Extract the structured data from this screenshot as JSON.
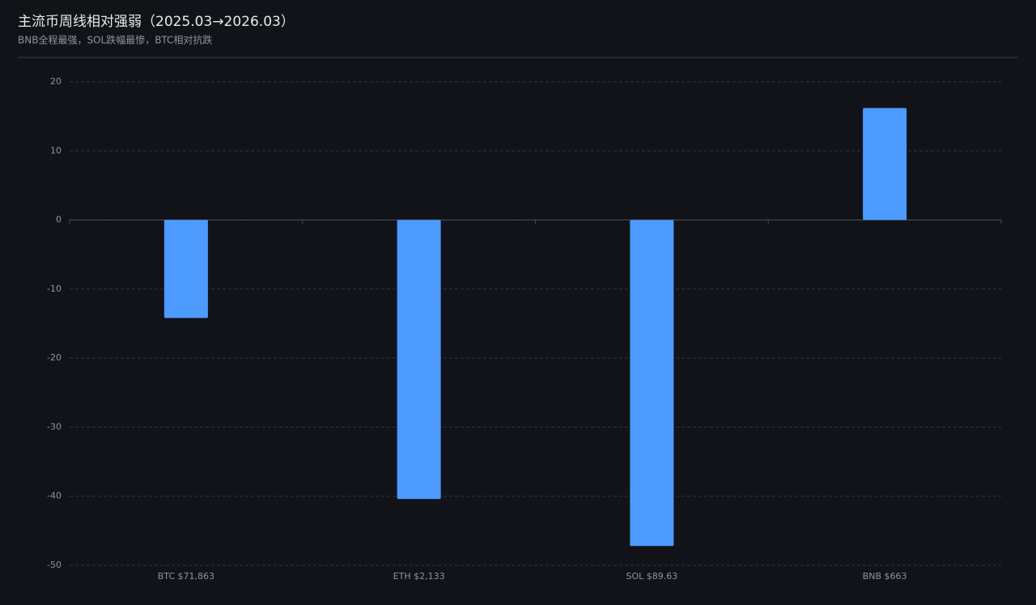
{
  "chart_data": {
    "type": "bar",
    "title": "主流币周线相对强弱（2025.03→2026.03）",
    "subtitle": "BNB全程最强，SOL跌幅最惨，BTC相对抗跌",
    "categories": [
      "BTC $71,863",
      "ETH $2,133",
      "SOL $89.63",
      "BNB $663"
    ],
    "values": [
      -14.2,
      -40.4,
      -47.2,
      16.2
    ],
    "color": "#4d9bff",
    "ylim": [
      -50,
      20
    ],
    "yticks": [
      -50,
      -40,
      -30,
      -20,
      -10,
      0,
      10,
      20
    ],
    "grid": true
  }
}
